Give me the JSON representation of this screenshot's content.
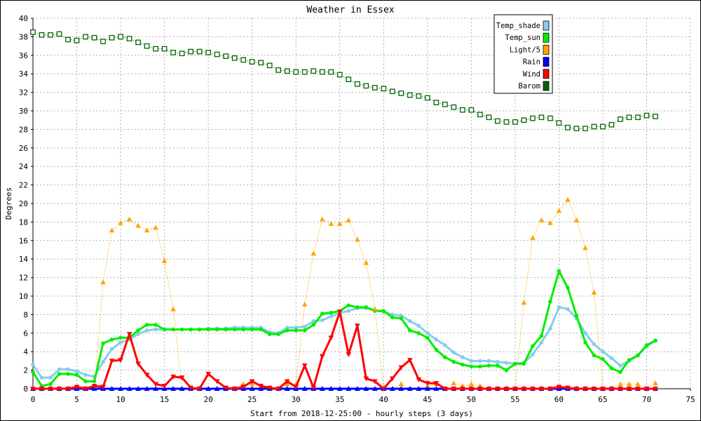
{
  "chart_data": {
    "type": "line",
    "title": "Weather in Essex",
    "xlabel": "Start from 2018-12-25:00 - hourly steps (3 days)",
    "ylabel": "Degrees",
    "xlim": [
      0,
      75
    ],
    "ylim": [
      0,
      40
    ],
    "x_ticks": [
      0,
      5,
      10,
      15,
      20,
      25,
      30,
      35,
      40,
      45,
      50,
      55,
      60,
      65,
      70,
      75
    ],
    "y_ticks": [
      0,
      2,
      4,
      6,
      8,
      10,
      12,
      14,
      16,
      18,
      20,
      22,
      24,
      26,
      28,
      30,
      32,
      34,
      36,
      38,
      40
    ],
    "grid": true,
    "legend_position": "top-right",
    "series": [
      {
        "name": "Temp_shade",
        "color": "#87ceeb",
        "marker": "circle",
        "values": [
          2.6,
          1.2,
          1.2,
          2.1,
          2.1,
          1.9,
          1.5,
          1.3,
          2.9,
          4.3,
          5.0,
          5.3,
          5.9,
          6.3,
          6.4,
          6.4,
          6.4,
          6.4,
          6.4,
          6.4,
          6.5,
          6.5,
          6.5,
          6.6,
          6.6,
          6.6,
          6.6,
          6.1,
          6.0,
          6.6,
          6.6,
          6.7,
          7.3,
          7.4,
          7.8,
          8.2,
          8.4,
          8.7,
          8.7,
          8.5,
          8.3,
          8.0,
          7.9,
          7.3,
          6.8,
          6.0,
          5.3,
          4.7,
          3.9,
          3.4,
          3.0,
          3.0,
          3.0,
          2.9,
          2.8,
          2.7,
          2.8,
          3.7,
          5.0,
          6.5,
          8.8,
          8.6,
          7.6,
          6.0,
          4.8,
          4.0,
          3.3,
          2.5,
          3.0,
          3.6,
          4.6,
          5.2
        ]
      },
      {
        "name": "Temp_sun",
        "color": "#00ee00",
        "marker": "circle",
        "values": [
          1.8,
          0.3,
          0.5,
          1.6,
          1.6,
          1.5,
          0.8,
          0.8,
          4.9,
          5.3,
          5.5,
          5.5,
          6.3,
          6.9,
          6.9,
          6.4,
          6.4,
          6.4,
          6.4,
          6.4,
          6.4,
          6.4,
          6.4,
          6.4,
          6.4,
          6.4,
          6.4,
          5.9,
          5.9,
          6.3,
          6.3,
          6.3,
          6.9,
          8.1,
          8.2,
          8.4,
          9.0,
          8.8,
          8.8,
          8.4,
          8.4,
          7.7,
          7.6,
          6.3,
          6.0,
          5.5,
          4.2,
          3.4,
          2.9,
          2.6,
          2.4,
          2.4,
          2.5,
          2.5,
          2.0,
          2.7,
          2.7,
          4.6,
          5.7,
          9.4,
          12.7,
          10.9,
          7.9,
          5.0,
          3.6,
          3.2,
          2.2,
          1.8,
          3.1,
          3.6,
          4.7,
          5.2
        ]
      },
      {
        "name": "Light/5",
        "color": "#ffa500",
        "marker": "triangle",
        "values": [
          0,
          0,
          0,
          0,
          0,
          0,
          0,
          0,
          11.5,
          17.1,
          17.9,
          18.3,
          17.6,
          17.1,
          17.4,
          13.8,
          8.6,
          0,
          0,
          0,
          0,
          0,
          0,
          0,
          0.5,
          0.5,
          0.3,
          0,
          0,
          0.5,
          0.5,
          9.1,
          14.6,
          18.3,
          17.8,
          17.8,
          18.2,
          16.1,
          13.6,
          8.6,
          0,
          0,
          0.5,
          0,
          0,
          0.3,
          0.5,
          0,
          0.6,
          0.3,
          0.5,
          0.3,
          0,
          0,
          0,
          0,
          9.3,
          16.3,
          18.2,
          17.9,
          19.2,
          20.4,
          18.2,
          15.2,
          10.4,
          0,
          0,
          0.5,
          0.5,
          0.5,
          0,
          0.6
        ]
      },
      {
        "name": "Rain",
        "color": "#0000ff",
        "marker": "triangle",
        "values": [
          0,
          0,
          0,
          0,
          0,
          0,
          0,
          0,
          0,
          0,
          0,
          0,
          0,
          0,
          0,
          0,
          0,
          0,
          0,
          0,
          0,
          0,
          0,
          0,
          0,
          0,
          0,
          0,
          0,
          0,
          0,
          0,
          0,
          0,
          0,
          0,
          0,
          0,
          0,
          0,
          0,
          0,
          0,
          0,
          0,
          0,
          0,
          0,
          0,
          0,
          0,
          0,
          0,
          0,
          0,
          0,
          0,
          0,
          0,
          0,
          0,
          0,
          0,
          0,
          0,
          0,
          0,
          0,
          0,
          0,
          0,
          0
        ]
      },
      {
        "name": "Wind",
        "color": "#ff0000",
        "marker": "triangle-down",
        "values": [
          0,
          0,
          0,
          0,
          0,
          0.2,
          0,
          0.3,
          0.2,
          3.0,
          3.1,
          5.9,
          2.7,
          1.5,
          0.5,
          0.3,
          1.3,
          1.2,
          0.1,
          0,
          1.6,
          0.8,
          0.1,
          0,
          0.2,
          0.8,
          0.3,
          0.1,
          0,
          0.8,
          0.2,
          2.5,
          0.1,
          3.5,
          5.5,
          8.3,
          3.7,
          6.8,
          1.1,
          0.8,
          0,
          1.1,
          2.3,
          3.1,
          1.0,
          0.6,
          0.6,
          0,
          0,
          0,
          0,
          0,
          0,
          0,
          0,
          0,
          0,
          0,
          0,
          0,
          0.2,
          0.1,
          0,
          0,
          0,
          0,
          0,
          0,
          0,
          0,
          0,
          0
        ]
      },
      {
        "name": "Barom",
        "color": "#006400",
        "marker": "square",
        "values": [
          38.5,
          38.2,
          38.2,
          38.3,
          37.7,
          37.6,
          38.0,
          37.9,
          37.5,
          37.9,
          38.0,
          37.8,
          37.4,
          37.0,
          36.7,
          36.7,
          36.3,
          36.2,
          36.4,
          36.4,
          36.3,
          36.1,
          35.9,
          35.7,
          35.5,
          35.3,
          35.2,
          34.9,
          34.4,
          34.3,
          34.2,
          34.2,
          34.3,
          34.2,
          34.2,
          33.9,
          33.4,
          32.9,
          32.7,
          32.5,
          32.4,
          32.1,
          31.9,
          31.7,
          31.6,
          31.4,
          30.9,
          30.7,
          30.4,
          30.1,
          30.1,
          29.6,
          29.3,
          28.9,
          28.8,
          28.8,
          29.0,
          29.2,
          29.3,
          29.2,
          28.7,
          28.2,
          28.1,
          28.1,
          28.3,
          28.3,
          28.5,
          29.1,
          29.3,
          29.3,
          29.5,
          29.4
        ]
      }
    ]
  }
}
